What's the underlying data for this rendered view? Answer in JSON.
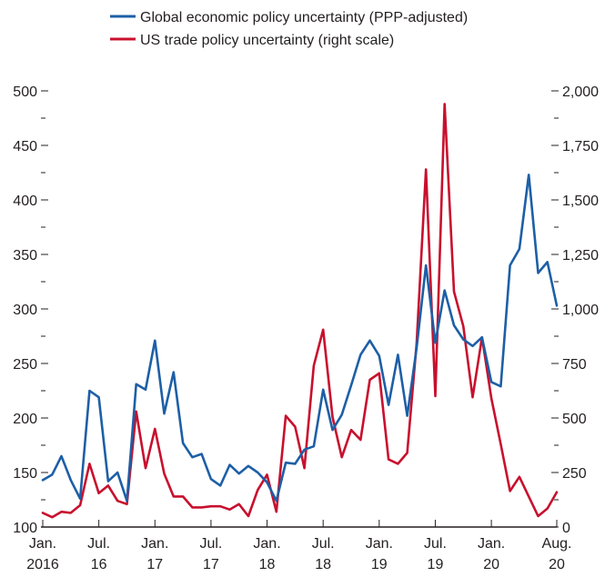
{
  "chart_data": {
    "type": "line",
    "title": "",
    "legend": {
      "placement": "top-center",
      "entries": [
        {
          "label": "Global economic policy uncertainty (PPP-adjusted)",
          "color": "#1d5fa6"
        },
        {
          "label": "US trade policy uncertainty (right scale)",
          "color": "#c8102e"
        }
      ]
    },
    "x_ticks": [
      {
        "line1": "Jan.",
        "line2": "2016",
        "index": 0
      },
      {
        "line1": "Jul.",
        "line2": "16",
        "index": 6
      },
      {
        "line1": "Jan.",
        "line2": "17",
        "index": 12
      },
      {
        "line1": "Jul.",
        "line2": "17",
        "index": 18
      },
      {
        "line1": "Jan.",
        "line2": "18",
        "index": 24
      },
      {
        "line1": "Jul.",
        "line2": "18",
        "index": 30
      },
      {
        "line1": "Jan.",
        "line2": "19",
        "index": 36
      },
      {
        "line1": "Jul.",
        "line2": "19",
        "index": 42
      },
      {
        "line1": "Jan.",
        "line2": "20",
        "index": 48
      },
      {
        "line1": "Aug.",
        "line2": "20",
        "index": 55
      }
    ],
    "x_range": [
      "2016-01",
      "2020-08"
    ],
    "y_left": {
      "lim": [
        100,
        500
      ],
      "ticks": [
        "100",
        "150",
        "200",
        "250",
        "300",
        "350",
        "400",
        "450",
        "500"
      ],
      "tick_values": [
        100,
        150,
        200,
        250,
        300,
        350,
        400,
        450,
        500
      ]
    },
    "y_right": {
      "lim": [
        0,
        2000
      ],
      "ticks": [
        "0",
        "250",
        "500",
        "750",
        "1,000",
        "1,250",
        "1,500",
        "1,750",
        "2,000"
      ],
      "tick_values": [
        0,
        250,
        500,
        750,
        1000,
        1250,
        1500,
        1750,
        2000
      ]
    },
    "grid": false,
    "series": [
      {
        "name": "Global economic policy uncertainty (PPP-adjusted)",
        "axis": "left",
        "color": "#1d5fa6",
        "values": [
          143,
          148,
          165,
          143,
          126,
          225,
          219,
          142,
          150,
          124,
          231,
          226,
          271,
          204,
          242,
          177,
          164,
          167,
          144,
          138,
          157,
          149,
          156,
          150,
          141,
          124,
          159,
          158,
          171,
          174,
          226,
          189,
          203,
          230,
          258,
          271,
          257,
          212,
          258,
          202,
          264,
          340,
          269,
          317,
          285,
          272,
          266,
          274,
          233,
          229,
          340,
          355,
          423,
          333,
          343,
          303
        ]
      },
      {
        "name": "US trade policy uncertainty (right scale)",
        "axis": "right",
        "color": "#c8102e",
        "values": [
          65,
          45,
          70,
          65,
          100,
          290,
          155,
          190,
          120,
          105,
          530,
          270,
          450,
          245,
          140,
          140,
          90,
          90,
          95,
          95,
          80,
          105,
          50,
          170,
          240,
          70,
          510,
          460,
          270,
          740,
          905,
          505,
          320,
          445,
          400,
          675,
          705,
          310,
          290,
          340,
          840,
          1640,
          600,
          1940,
          1080,
          920,
          595,
          870,
          590,
          380,
          165,
          230,
          140,
          50,
          85,
          160
        ]
      }
    ]
  }
}
